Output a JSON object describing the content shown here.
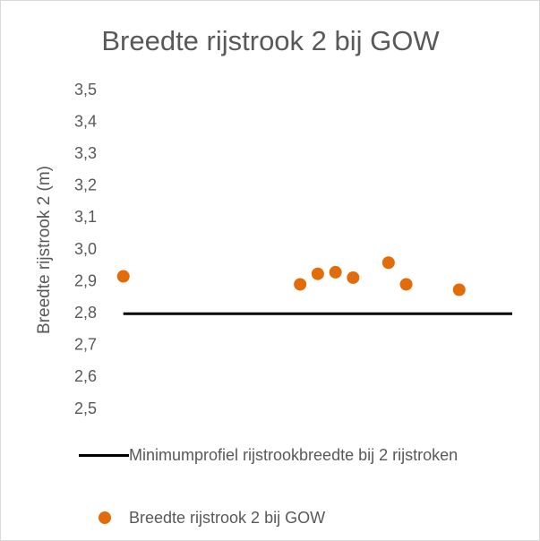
{
  "chart_data": {
    "type": "scatter",
    "title": "Breedte rijstrook 2 bij GOW",
    "y_label": "Breedte rijstrook 2 (m)",
    "xlim": [
      0,
      23
    ],
    "ylim": [
      2.5,
      3.5
    ],
    "yticks": [
      {
        "value": 2.5,
        "label": "2,5"
      },
      {
        "value": 2.6,
        "label": "2,6"
      },
      {
        "value": 2.7,
        "label": "2,7"
      },
      {
        "value": 2.8,
        "label": "2,8"
      },
      {
        "value": 2.9,
        "label": "2,9"
      },
      {
        "value": 3.0,
        "label": "3,0"
      },
      {
        "value": 3.1,
        "label": "3,1"
      },
      {
        "value": 3.2,
        "label": "3,2"
      },
      {
        "value": 3.3,
        "label": "3,3"
      },
      {
        "value": 3.4,
        "label": "3,4"
      },
      {
        "value": 3.5,
        "label": "3,5"
      }
    ],
    "series": [
      {
        "name": "Minimumprofiel rijstrookbreedte bij 2 rijstroken",
        "type": "line",
        "color": "#000000",
        "x": [
          1,
          23
        ],
        "values": [
          2.8,
          2.8
        ]
      },
      {
        "name": "Breedte rijstrook 2 bij GOW",
        "type": "scatter",
        "color": "#e36c0a",
        "x": [
          1,
          11,
          12,
          13,
          14,
          16,
          17,
          20
        ],
        "values": [
          2.917,
          2.892,
          2.925,
          2.93,
          2.913,
          2.96,
          2.892,
          2.875
        ]
      }
    ],
    "legend": "bottom"
  }
}
